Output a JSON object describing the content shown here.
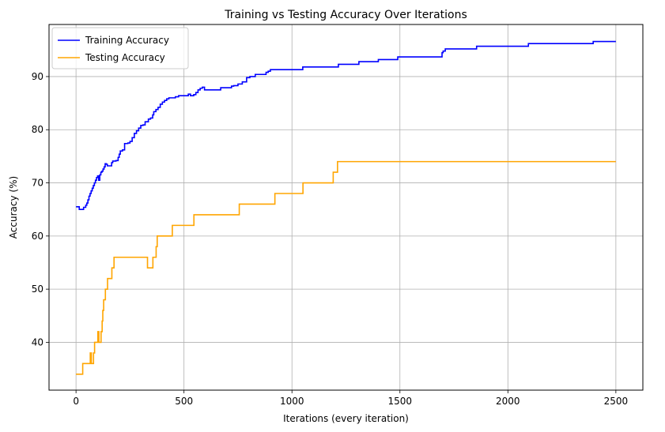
{
  "chart_data": {
    "type": "line",
    "title": "Training vs Testing Accuracy Over Iterations",
    "xlabel": "Iterations (every iteration)",
    "ylabel": "Accuracy (%)",
    "xlim": [
      -125,
      2625
    ],
    "ylim": [
      31,
      99.8
    ],
    "xticks": [
      0,
      500,
      1000,
      1500,
      2000,
      2500
    ],
    "xtick_labels": [
      "0",
      "500",
      "1000",
      "1500",
      "2000",
      "2500"
    ],
    "yticks": [
      40,
      50,
      60,
      70,
      80,
      90
    ],
    "ytick_labels": [
      "40",
      "50",
      "60",
      "70",
      "80",
      "90"
    ],
    "grid": true,
    "legend_position": "top-left",
    "series": [
      {
        "name": "Training Accuracy",
        "color": "#0000ff",
        "step": true,
        "points": [
          [
            0,
            65.5
          ],
          [
            10,
            65.5
          ],
          [
            15,
            65
          ],
          [
            30,
            65
          ],
          [
            35,
            65.4
          ],
          [
            45,
            65.8
          ],
          [
            50,
            66.2
          ],
          [
            55,
            66.8
          ],
          [
            60,
            67.5
          ],
          [
            65,
            68
          ],
          [
            70,
            68.5
          ],
          [
            75,
            69
          ],
          [
            80,
            69.5
          ],
          [
            85,
            70
          ],
          [
            90,
            70.5
          ],
          [
            95,
            71
          ],
          [
            100,
            71.3
          ],
          [
            105,
            70.5
          ],
          [
            110,
            71.5
          ],
          [
            115,
            72
          ],
          [
            120,
            72.2
          ],
          [
            125,
            72.6
          ],
          [
            130,
            73
          ],
          [
            135,
            73.6
          ],
          [
            140,
            73.5
          ],
          [
            145,
            73.2
          ],
          [
            160,
            73.2
          ],
          [
            165,
            73.8
          ],
          [
            170,
            74.1
          ],
          [
            185,
            74.2
          ],
          [
            195,
            74.8
          ],
          [
            200,
            75.4
          ],
          [
            205,
            76
          ],
          [
            215,
            76.2
          ],
          [
            225,
            77.4
          ],
          [
            240,
            77.5
          ],
          [
            250,
            77.8
          ],
          [
            260,
            78.5
          ],
          [
            270,
            79.3
          ],
          [
            280,
            79.8
          ],
          [
            290,
            80.3
          ],
          [
            300,
            80.8
          ],
          [
            310,
            80.9
          ],
          [
            320,
            81.5
          ],
          [
            335,
            82
          ],
          [
            345,
            82.2
          ],
          [
            355,
            82.8
          ],
          [
            360,
            83.4
          ],
          [
            370,
            83.8
          ],
          [
            380,
            84.2
          ],
          [
            390,
            84.8
          ],
          [
            400,
            85.2
          ],
          [
            410,
            85.5
          ],
          [
            420,
            85.8
          ],
          [
            430,
            86
          ],
          [
            460,
            86.2
          ],
          [
            475,
            86.4
          ],
          [
            500,
            86.4
          ],
          [
            520,
            86.7
          ],
          [
            530,
            86.4
          ],
          [
            545,
            86.6
          ],
          [
            555,
            87
          ],
          [
            565,
            87.5
          ],
          [
            575,
            87.8
          ],
          [
            585,
            88
          ],
          [
            595,
            87.5
          ],
          [
            660,
            87.5
          ],
          [
            670,
            87.9
          ],
          [
            720,
            88.2
          ],
          [
            730,
            88.3
          ],
          [
            750,
            88.6
          ],
          [
            770,
            89
          ],
          [
            790,
            89.8
          ],
          [
            805,
            90
          ],
          [
            830,
            90.4
          ],
          [
            880,
            90.8
          ],
          [
            890,
            91
          ],
          [
            900,
            91.3
          ],
          [
            1040,
            91.3
          ],
          [
            1050,
            91.8
          ],
          [
            1200,
            91.8
          ],
          [
            1215,
            92.3
          ],
          [
            1300,
            92.3
          ],
          [
            1310,
            92.8
          ],
          [
            1390,
            92.8
          ],
          [
            1400,
            93.2
          ],
          [
            1480,
            93.2
          ],
          [
            1490,
            93.7
          ],
          [
            1690,
            93.7
          ],
          [
            1695,
            94.5
          ],
          [
            1700,
            94.8
          ],
          [
            1710,
            95.2
          ],
          [
            1850,
            95.2
          ],
          [
            1855,
            95.7
          ],
          [
            2090,
            95.7
          ],
          [
            2095,
            96.2
          ],
          [
            2390,
            96.2
          ],
          [
            2395,
            96.6
          ],
          [
            2500,
            96.6
          ]
        ]
      },
      {
        "name": "Testing Accuracy",
        "color": "#ffa500",
        "step": true,
        "points": [
          [
            0,
            34
          ],
          [
            30,
            34
          ],
          [
            31,
            36
          ],
          [
            65,
            36
          ],
          [
            66,
            38
          ],
          [
            70,
            38
          ],
          [
            71,
            36
          ],
          [
            80,
            36
          ],
          [
            81,
            38
          ],
          [
            85,
            38
          ],
          [
            86,
            40
          ],
          [
            100,
            40
          ],
          [
            101,
            42
          ],
          [
            105,
            42
          ],
          [
            106,
            40
          ],
          [
            115,
            40
          ],
          [
            116,
            42
          ],
          [
            120,
            42
          ],
          [
            121,
            44
          ],
          [
            123,
            44
          ],
          [
            124,
            46
          ],
          [
            127,
            46
          ],
          [
            128,
            48
          ],
          [
            135,
            48
          ],
          [
            136,
            50
          ],
          [
            145,
            50
          ],
          [
            146,
            52
          ],
          [
            165,
            52
          ],
          [
            166,
            54
          ],
          [
            175,
            54
          ],
          [
            176,
            56
          ],
          [
            330,
            56
          ],
          [
            331,
            54
          ],
          [
            355,
            54
          ],
          [
            356,
            56
          ],
          [
            370,
            56
          ],
          [
            371,
            58
          ],
          [
            375,
            58
          ],
          [
            376,
            60
          ],
          [
            445,
            60
          ],
          [
            446,
            62
          ],
          [
            545,
            62
          ],
          [
            546,
            64
          ],
          [
            755,
            64
          ],
          [
            756,
            66
          ],
          [
            920,
            66
          ],
          [
            921,
            68
          ],
          [
            1050,
            68
          ],
          [
            1051,
            70
          ],
          [
            1190,
            70
          ],
          [
            1191,
            72
          ],
          [
            1210,
            72
          ],
          [
            1211,
            74
          ],
          [
            2500,
            74
          ]
        ]
      }
    ]
  }
}
